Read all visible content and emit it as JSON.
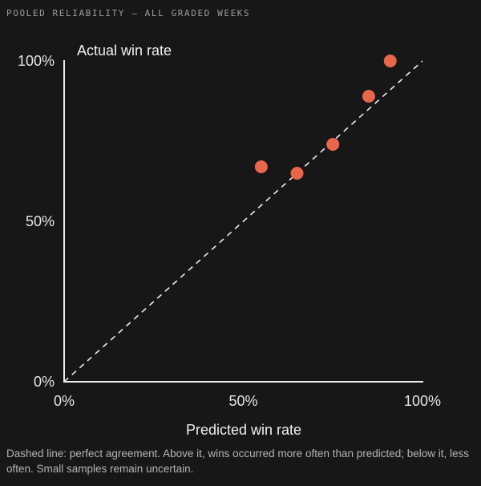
{
  "heading": "POOLED RELIABILITY — ALL GRADED WEEKS",
  "caption": "Dashed line: perfect agreement. Above it, wins occurred more often than predicted; below it, less often. Small samples remain uncertain.",
  "colors": {
    "background": "#171717",
    "axis": "#ededed",
    "reference_line": "#ededed",
    "points": "#e8664a",
    "muted_text": "#b4b4b4"
  },
  "chart_data": {
    "type": "scatter",
    "xlabel": "Predicted win rate",
    "ylabel": "Actual win rate",
    "xlim": [
      0,
      100
    ],
    "ylim": [
      0,
      100
    ],
    "x_ticks": [
      {
        "value": 0,
        "label": "0%"
      },
      {
        "value": 50,
        "label": "50%"
      },
      {
        "value": 100,
        "label": "100%"
      }
    ],
    "y_ticks": [
      {
        "value": 0,
        "label": "0%"
      },
      {
        "value": 50,
        "label": "50%"
      },
      {
        "value": 100,
        "label": "100%"
      }
    ],
    "reference_line": {
      "from": [
        0,
        0
      ],
      "to": [
        100,
        100
      ],
      "style": "dashed"
    },
    "grid": false,
    "points": [
      {
        "x": 55,
        "y": 67
      },
      {
        "x": 65,
        "y": 65
      },
      {
        "x": 75,
        "y": 74
      },
      {
        "x": 85,
        "y": 89
      },
      {
        "x": 91,
        "y": 100
      }
    ]
  }
}
